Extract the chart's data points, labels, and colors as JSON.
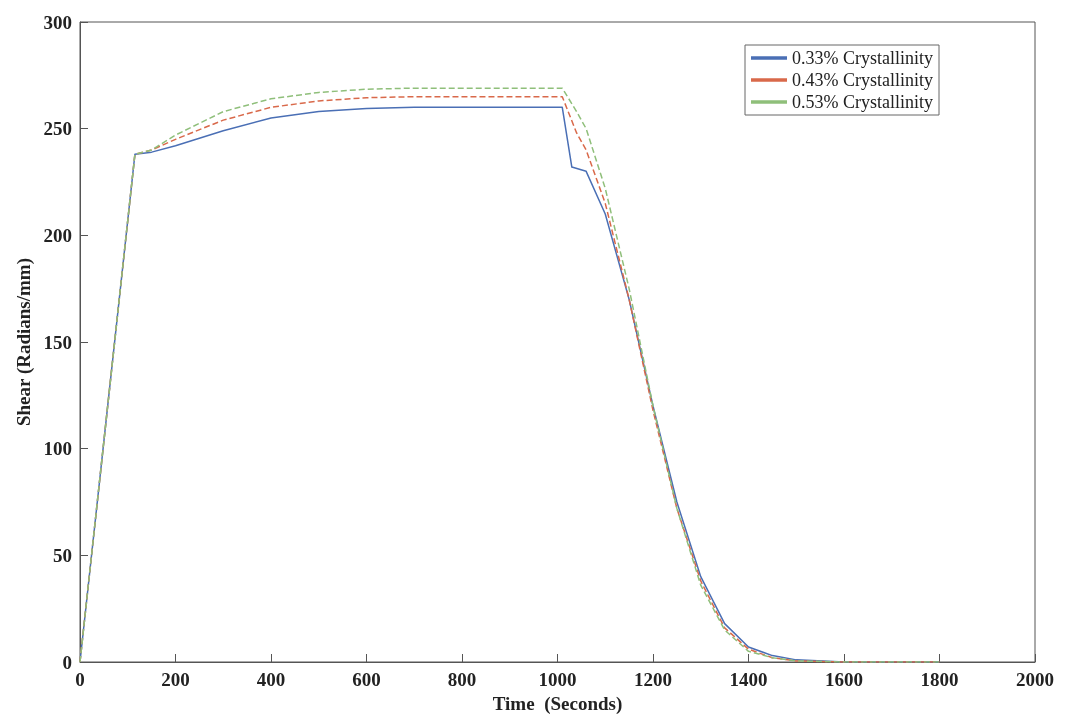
{
  "chart_data": {
    "type": "line",
    "xlabel": "Time  (Seconds)",
    "ylabel": "Shear (Radians/mm)",
    "xlim": [
      0,
      2000
    ],
    "xticks": [
      0,
      200,
      400,
      600,
      800,
      1000,
      1200,
      1400,
      1600,
      1800,
      2000
    ],
    "ylim": [
      0,
      300
    ],
    "yticks": [
      0,
      50,
      100,
      150,
      200,
      250,
      300
    ],
    "grid": false,
    "legend": "top right",
    "marker": "none",
    "series": [
      {
        "name": "0.33% Crystallinity",
        "color": "#4a6fb5",
        "line_style": "solid",
        "x": [
          0,
          115,
          150,
          200,
          300,
          400,
          500,
          600,
          700,
          1010,
          1030,
          1060,
          1100,
          1150,
          1200,
          1250,
          1300,
          1350,
          1400,
          1450,
          1500,
          1600,
          1800
        ],
        "values": [
          0,
          238,
          239,
          242,
          249,
          255,
          258,
          259.5,
          260,
          260,
          232,
          230,
          210,
          170,
          120,
          75,
          40,
          18,
          7,
          3,
          1,
          0,
          0
        ]
      },
      {
        "name": "0.43% Crystallinity",
        "color": "#d9694a",
        "line_style": "dashed",
        "x": [
          0,
          115,
          150,
          200,
          300,
          400,
          500,
          600,
          700,
          1010,
          1040,
          1060,
          1100,
          1150,
          1200,
          1250,
          1300,
          1350,
          1400,
          1450,
          1500,
          1600,
          1800
        ],
        "values": [
          0,
          238,
          240,
          245,
          254,
          260,
          263,
          264.5,
          265,
          265,
          248,
          240,
          215,
          170,
          118,
          72,
          38,
          16,
          6,
          2,
          0.5,
          0,
          0
        ]
      },
      {
        "name": "0.53% Crystallinity",
        "color": "#8fbf7a",
        "line_style": "dashed",
        "x": [
          0,
          115,
          150,
          200,
          300,
          400,
          500,
          600,
          700,
          1010,
          1040,
          1060,
          1100,
          1150,
          1200,
          1250,
          1300,
          1350,
          1400,
          1450,
          1500,
          1600,
          1800
        ],
        "values": [
          0,
          238,
          240,
          247,
          258,
          264,
          267,
          268.5,
          269,
          269,
          258,
          250,
          222,
          175,
          120,
          72,
          36,
          15,
          5,
          2,
          0.5,
          0,
          0
        ]
      }
    ]
  }
}
